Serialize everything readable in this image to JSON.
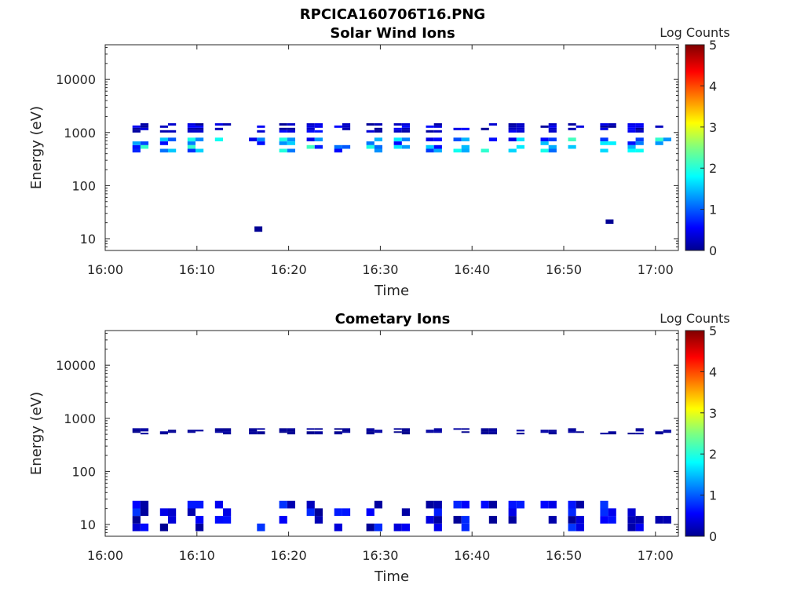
{
  "figure_title": "RPCICA160706T16.PNG",
  "chart_data": [
    {
      "type": "heatmap",
      "title": "Solar Wind Ions",
      "xlabel": "Time",
      "ylabel": "Energy (eV)",
      "y_scale": "log",
      "ylim": [
        6,
        45000
      ],
      "x_tick_labels": [
        "16:00",
        "16:10",
        "16:20",
        "16:30",
        "16:40",
        "16:50",
        "17:00"
      ],
      "y_tick_labels": [
        "10",
        "100",
        "1000",
        "10000"
      ],
      "y_tick_values": [
        10,
        100,
        1000,
        10000
      ],
      "colorbar_label": "Log Counts",
      "colorbar_range": [
        0,
        5
      ],
      "colorbar_ticks": [
        "0",
        "1",
        "2",
        "3",
        "4",
        "5"
      ],
      "colormap": "jet",
      "scan_times_min": [
        4,
        7,
        10,
        13,
        16.7,
        20,
        23,
        26,
        29.5,
        32.5,
        36,
        39,
        42,
        45,
        48.5,
        51.5,
        55,
        58,
        61
      ],
      "bands": [
        {
          "e_low": 1000,
          "e_high": 1500,
          "level_min": 0.1,
          "level_max": 0.7
        },
        {
          "e_low": 420,
          "e_high": 800,
          "level_min": 0.5,
          "level_max": 2.2
        }
      ],
      "isolated": [
        {
          "time_min": 16.7,
          "e_low": 13.5,
          "e_high": 17,
          "level": 0.1
        },
        {
          "time_min": 55.0,
          "e_low": 19,
          "e_high": 23,
          "level": 0.1
        }
      ]
    },
    {
      "type": "heatmap",
      "title": "Cometary Ions",
      "xlabel": "Time",
      "ylabel": "Energy (eV)",
      "y_scale": "log",
      "ylim": [
        6,
        45000
      ],
      "x_tick_labels": [
        "16:00",
        "16:10",
        "16:20",
        "16:30",
        "16:40",
        "16:50",
        "17:00"
      ],
      "y_tick_labels": [
        "10",
        "100",
        "1000",
        "10000"
      ],
      "y_tick_values": [
        10,
        100,
        1000,
        10000
      ],
      "colorbar_label": "Log Counts",
      "colorbar_range": [
        0,
        5
      ],
      "colorbar_ticks": [
        "0",
        "1",
        "2",
        "3",
        "4",
        "5"
      ],
      "colormap": "jet",
      "scan_times_min": [
        4,
        7,
        10,
        13,
        16.7,
        20,
        23,
        26,
        29.5,
        32.5,
        36,
        39,
        42,
        45,
        48.5,
        51.5,
        55,
        58,
        61
      ],
      "bands": [
        {
          "e_low": 500,
          "e_high": 650,
          "level_min": 0.05,
          "level_max": 0.2
        },
        {
          "e_low": 7.5,
          "e_high": 28,
          "level_min": 0.1,
          "level_max": 0.9
        }
      ],
      "isolated": []
    }
  ]
}
